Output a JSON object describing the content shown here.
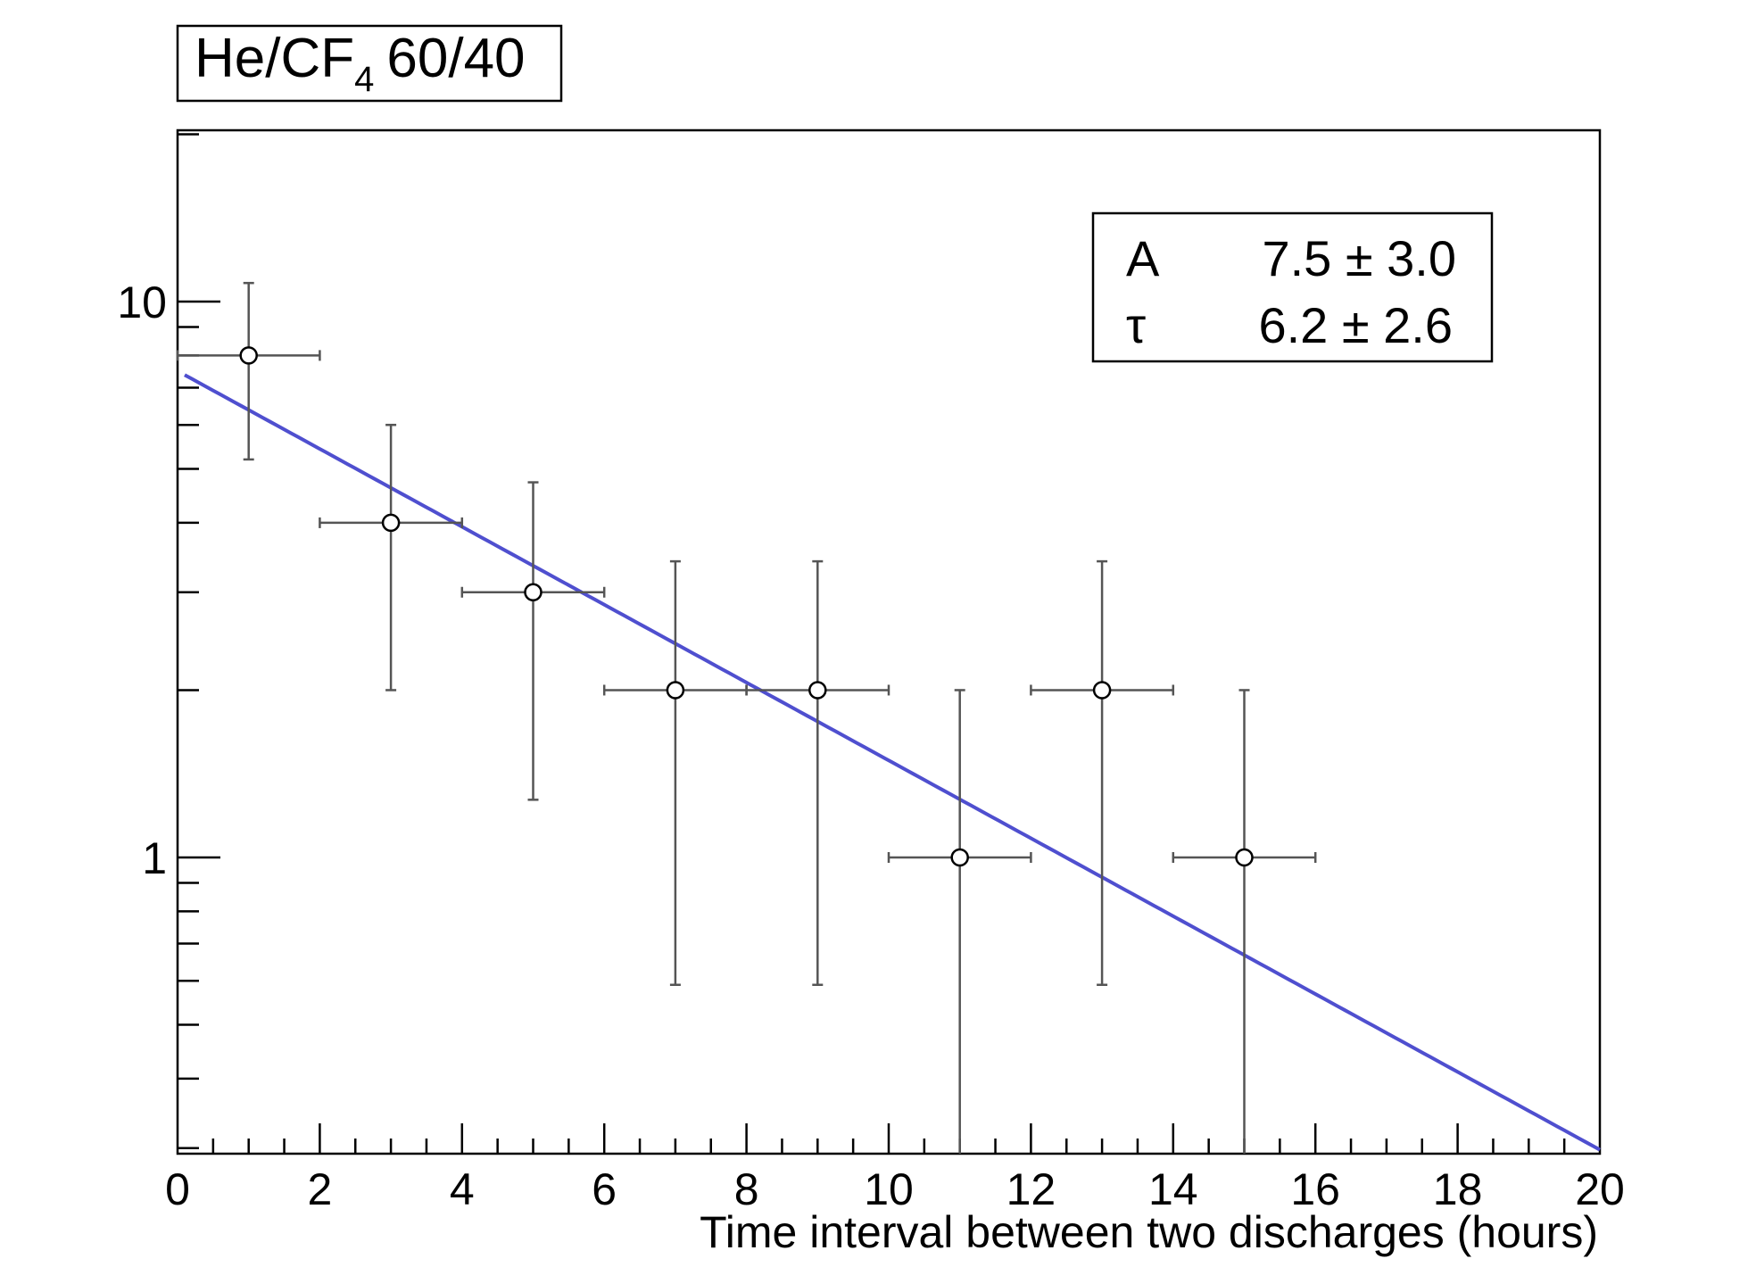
{
  "title": {
    "main": "He/CF",
    "subscript": "4",
    "suffix": "60/40"
  },
  "stats": [
    {
      "name": "A",
      "value": "7.5 ± 3.0"
    },
    {
      "name": "τ",
      "value": "6.2 ± 2.6"
    }
  ],
  "chart_data": {
    "type": "scatter",
    "title": "He/CF4 60/40",
    "xlabel": "Time interval between two discharges (hours)",
    "ylabel": "",
    "xlim": [
      0,
      20
    ],
    "ylim": [
      0.3,
      20
    ],
    "yscale": "log",
    "x_ticks": [
      0,
      2,
      4,
      6,
      8,
      10,
      12,
      14,
      16,
      18,
      20
    ],
    "y_ticks": [
      1,
      10
    ],
    "points": [
      {
        "x": 1,
        "y": 8,
        "xerr": 1,
        "yerr_low": 2.8,
        "yerr_high": 2.8
      },
      {
        "x": 3,
        "y": 4,
        "xerr": 1,
        "yerr_low": 2.0,
        "yerr_high": 2.0
      },
      {
        "x": 5,
        "y": 3,
        "xerr": 1,
        "yerr_low": 1.73,
        "yerr_high": 1.73
      },
      {
        "x": 7,
        "y": 2,
        "xerr": 1,
        "yerr_low": 1.41,
        "yerr_high": 1.41
      },
      {
        "x": 9,
        "y": 2,
        "xerr": 1,
        "yerr_low": 1.41,
        "yerr_high": 1.41
      },
      {
        "x": 11,
        "y": 1,
        "xerr": 1,
        "yerr_low": 1.0,
        "yerr_high": 1.0
      },
      {
        "x": 13,
        "y": 2,
        "xerr": 1,
        "yerr_low": 1.41,
        "yerr_high": 1.41
      },
      {
        "x": 15,
        "y": 1,
        "xerr": 1,
        "yerr_low": 1.0,
        "yerr_high": 1.0
      }
    ],
    "fit": {
      "function": "A*exp(-x/tau)",
      "A": 7.5,
      "tau": 6.2,
      "x_range": [
        0.1,
        20
      ],
      "color": "#4f4fcf"
    },
    "marker_color": "#000000",
    "errorbar_color": "#555555"
  }
}
